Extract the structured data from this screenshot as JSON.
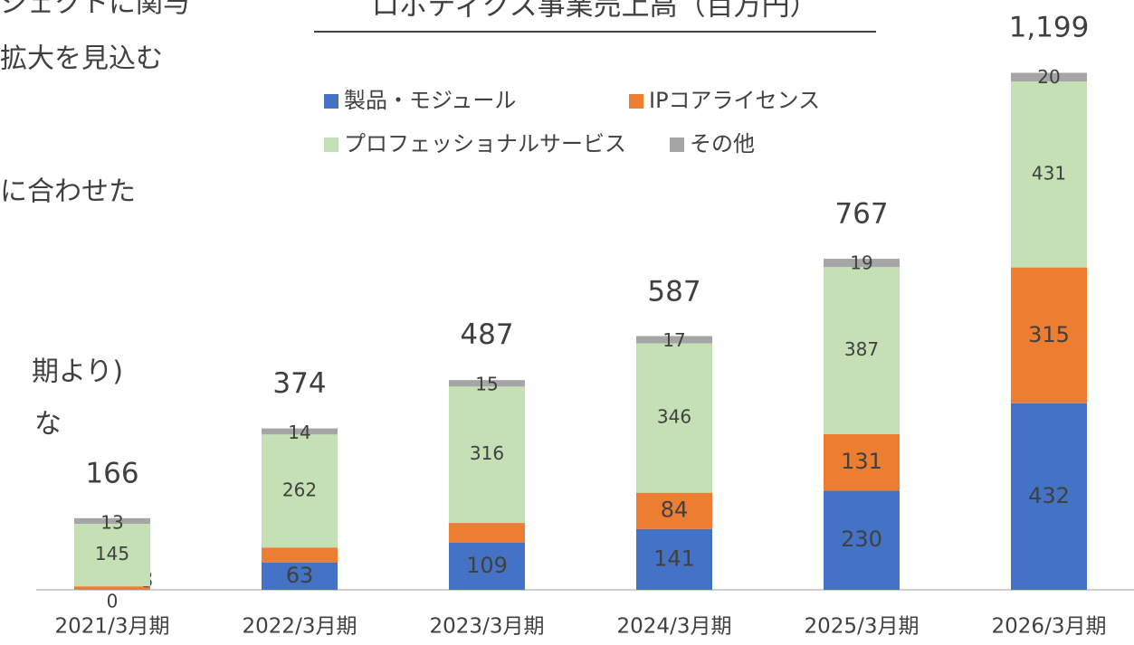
{
  "side_text": [
    "ジェクトに関与",
    "拡大を見込む",
    "に合わせた",
    "期より)",
    "な"
  ],
  "chart_data": {
    "type": "stacked-bar",
    "title": "ロボティクス事業売上高（百万円）",
    "categories": [
      "2021/3月期",
      "2022/3月期",
      "2023/3月期",
      "2024/3月期",
      "2025/3月期",
      "2026/3月期"
    ],
    "series": [
      {
        "name": "製品・モジュール",
        "color": "#4472c4",
        "values": [
          0,
          63,
          109,
          141,
          230,
          432
        ]
      },
      {
        "name": "IPコアライセンス",
        "color": "#ed7d31",
        "values": [
          8,
          35,
          46,
          84,
          131,
          315
        ]
      },
      {
        "name": "プロフェッショナルサービス",
        "color": "#c5e0b4",
        "values": [
          145,
          262,
          316,
          346,
          387,
          431
        ]
      },
      {
        "name": "その他",
        "color": "#a5a5a5",
        "values": [
          13,
          14,
          15,
          17,
          19,
          20
        ]
      }
    ],
    "totals": [
      166,
      374,
      487,
      587,
      767,
      1199
    ],
    "total_labels": [
      "166",
      "374",
      "487",
      "587",
      "767",
      "1,199"
    ]
  }
}
